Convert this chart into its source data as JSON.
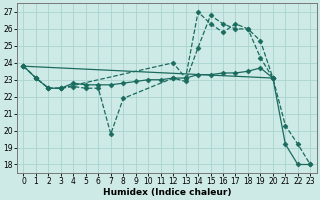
{
  "xlabel": "Humidex (Indice chaleur)",
  "bg_color": "#ceeae6",
  "grid_color": "#a8d4cf",
  "line_color": "#1a6b5e",
  "xlim": [
    -0.5,
    23.5
  ],
  "ylim": [
    17.5,
    27.5
  ],
  "yticks": [
    18,
    19,
    20,
    21,
    22,
    23,
    24,
    25,
    26,
    27
  ],
  "xticks": [
    0,
    1,
    2,
    3,
    4,
    5,
    6,
    7,
    8,
    9,
    10,
    11,
    12,
    13,
    14,
    15,
    16,
    17,
    18,
    19,
    20,
    21,
    22,
    23
  ],
  "series": [
    {
      "x": [
        0,
        1,
        2,
        3,
        12,
        13,
        14,
        15,
        16,
        17,
        18,
        19,
        20
      ],
      "y": [
        23.8,
        23.1,
        22.5,
        22.5,
        24.0,
        23.1,
        27.0,
        26.3,
        25.8,
        26.3,
        26.0,
        25.3,
        23.1
      ],
      "marker": "D",
      "markersize": 2.5,
      "linewidth": 0.9,
      "linestyle": "--"
    },
    {
      "x": [
        0,
        1,
        2,
        3,
        4,
        5,
        6,
        7,
        8,
        12,
        13,
        14,
        15,
        16,
        17,
        18,
        19,
        20,
        21,
        22,
        23
      ],
      "y": [
        23.8,
        23.1,
        22.5,
        22.5,
        22.6,
        22.5,
        22.5,
        19.8,
        21.9,
        23.1,
        22.9,
        24.9,
        26.8,
        26.3,
        26.0,
        26.0,
        24.3,
        23.1,
        20.3,
        19.2,
        18.0
      ],
      "marker": "D",
      "markersize": 2.5,
      "linewidth": 0.9,
      "linestyle": "--"
    },
    {
      "x": [
        0,
        1,
        2,
        3,
        4,
        5,
        6,
        7,
        8,
        9,
        10,
        11,
        12,
        13,
        14,
        15,
        16,
        17,
        18,
        19,
        20
      ],
      "y": [
        23.8,
        23.1,
        22.5,
        22.5,
        22.8,
        22.7,
        22.7,
        22.7,
        22.8,
        22.9,
        23.0,
        23.0,
        23.1,
        23.1,
        23.3,
        23.3,
        23.4,
        23.4,
        23.5,
        23.7,
        23.1
      ],
      "marker": "D",
      "markersize": 2.5,
      "linewidth": 0.9,
      "linestyle": "-"
    },
    {
      "x": [
        0,
        20,
        21,
        22,
        23
      ],
      "y": [
        23.8,
        23.1,
        19.2,
        18.0,
        18.0
      ],
      "marker": "D",
      "markersize": 2.5,
      "linewidth": 0.9,
      "linestyle": "-"
    }
  ]
}
